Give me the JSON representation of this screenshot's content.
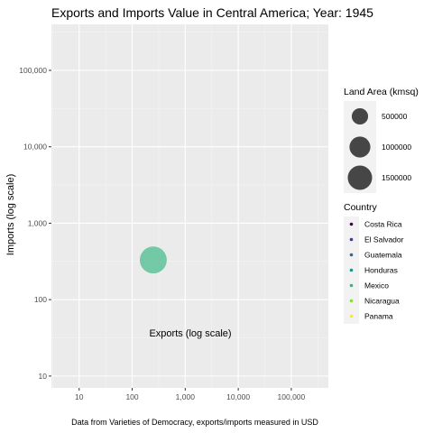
{
  "chart_data": {
    "type": "scatter",
    "title": "Exports and Imports Value in Central America; Year: 1945",
    "xlabel": "Exports (log scale)",
    "ylabel": "Imports (log scale)",
    "caption": "Data from Varieties of Democracy, exports/imports measured in USD",
    "x_scale": "log10",
    "y_scale": "log10",
    "xlim": [
      3,
      500000
    ],
    "ylim": [
      7,
      400000
    ],
    "x_ticks": [
      {
        "value": 10,
        "label": "10"
      },
      {
        "value": 100,
        "label": "100"
      },
      {
        "value": 1000,
        "label": "1,000"
      },
      {
        "value": 10000,
        "label": "10,000"
      },
      {
        "value": 100000,
        "label": "100,000"
      }
    ],
    "y_ticks": [
      {
        "value": 10,
        "label": "10"
      },
      {
        "value": 100,
        "label": "100"
      },
      {
        "value": 1000,
        "label": "1,000"
      },
      {
        "value": 10000,
        "label": "10,000"
      },
      {
        "value": 100000,
        "label": "100,000"
      }
    ],
    "grid": true,
    "panel_background": "#ebebeb",
    "points": [
      {
        "country": "Mexico",
        "exports": 250,
        "imports": 330,
        "land_area": 1944000,
        "color": "#5ec29a"
      }
    ],
    "size_legend": {
      "title": "Land Area (kmsq)",
      "items": [
        {
          "value": 500000,
          "label": "500000"
        },
        {
          "value": 1000000,
          "label": "1000000"
        },
        {
          "value": 1500000,
          "label": "1500000"
        }
      ]
    },
    "color_legend": {
      "title": "Country",
      "items": [
        {
          "label": "Costa Rica",
          "color": "#440154"
        },
        {
          "label": "El Salvador",
          "color": "#443983"
        },
        {
          "label": "Guatemala",
          "color": "#31688e"
        },
        {
          "label": "Honduras",
          "color": "#21918c"
        },
        {
          "label": "Mexico",
          "color": "#35b779"
        },
        {
          "label": "Nicaragua",
          "color": "#90d743"
        },
        {
          "label": "Panama",
          "color": "#fde725"
        }
      ]
    },
    "legend_position": "right"
  }
}
